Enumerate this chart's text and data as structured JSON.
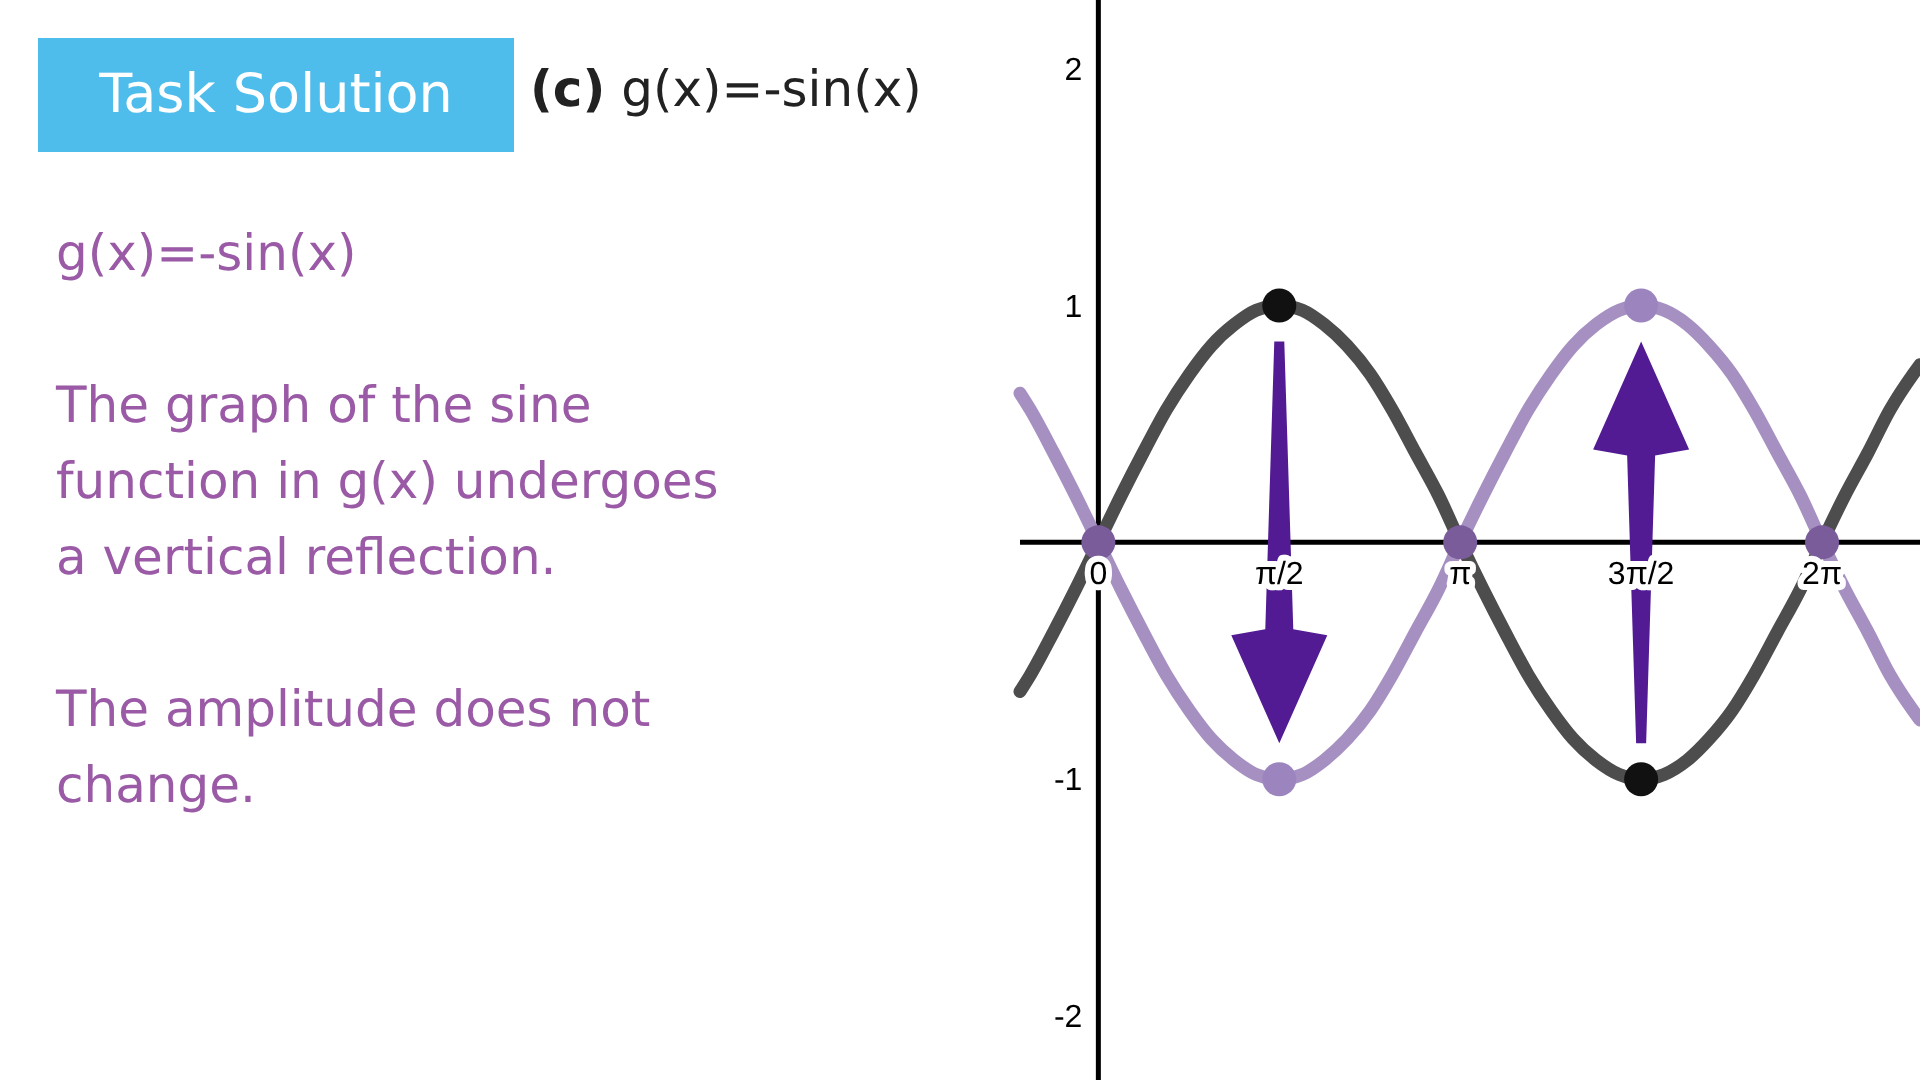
{
  "chart_data": {
    "type": "line",
    "title": "Task Solution",
    "subtitle": "(c) g(x)=-sin(x)",
    "annotations": [
      "g(x)=-sin(x)",
      "The graph of the sine function in g(x) undergoes a vertical reflection.",
      "The amplitude does not change."
    ],
    "xlim": [
      -0.68,
      7.13
    ],
    "ylim": [
      -2.27,
      2.29
    ],
    "xticks": [
      0,
      {
        "value": 1.57,
        "label": "π/2"
      },
      {
        "value": 3.14,
        "label": "π"
      },
      {
        "value": 4.71,
        "label": "3π/2"
      },
      {
        "value": 6.28,
        "label": "2π"
      }
    ],
    "yticks": [
      -2,
      -1,
      1,
      2
    ],
    "series": [
      {
        "color": "#4d4d4d",
        "x": [
          -0.68,
          -0.59,
          -0.39,
          -0.2,
          0,
          0.2,
          0.39,
          0.59,
          0.79,
          0.98,
          1.18,
          1.37,
          1.57,
          1.77,
          1.96,
          2.16,
          2.36,
          2.55,
          2.75,
          2.95,
          3.14,
          3.34,
          3.53,
          3.73,
          3.93,
          4.12,
          4.32,
          4.52,
          4.71,
          4.91,
          5.11,
          5.3,
          5.5,
          5.69,
          5.89,
          6.09,
          6.28,
          6.48,
          6.68,
          6.87,
          7.07,
          7.13
        ],
        "values": [
          -0.63,
          -0.56,
          -0.38,
          -0.2,
          0,
          0.2,
          0.38,
          0.56,
          0.71,
          0.83,
          0.92,
          0.98,
          1,
          0.98,
          0.92,
          0.83,
          0.71,
          0.56,
          0.38,
          0.2,
          0,
          -0.2,
          -0.38,
          -0.56,
          -0.71,
          -0.83,
          -0.92,
          -0.98,
          -1,
          -0.98,
          -0.92,
          -0.83,
          -0.71,
          -0.56,
          -0.38,
          -0.2,
          0,
          0.2,
          0.38,
          0.56,
          0.71,
          0.75
        ]
      },
      {
        "color": "#a690c2",
        "x": [
          -0.68,
          -0.59,
          -0.39,
          -0.2,
          0,
          0.2,
          0.39,
          0.59,
          0.79,
          0.98,
          1.18,
          1.37,
          1.57,
          1.77,
          1.96,
          2.16,
          2.36,
          2.55,
          2.75,
          2.95,
          3.14,
          3.34,
          3.53,
          3.73,
          3.93,
          4.12,
          4.32,
          4.52,
          4.71,
          4.91,
          5.11,
          5.3,
          5.5,
          5.69,
          5.89,
          6.09,
          6.28,
          6.48,
          6.68,
          6.87,
          7.07,
          7.13
        ],
        "values": [
          0.63,
          0.56,
          0.38,
          0.2,
          0,
          -0.2,
          -0.38,
          -0.56,
          -0.71,
          -0.83,
          -0.92,
          -0.98,
          -1,
          -0.98,
          -0.92,
          -0.83,
          -0.71,
          -0.56,
          -0.38,
          -0.2,
          0,
          0.2,
          0.38,
          0.56,
          0.71,
          0.83,
          0.92,
          0.98,
          1,
          0.98,
          0.92,
          0.83,
          0.71,
          0.56,
          0.38,
          0.2,
          0,
          -0.2,
          -0.38,
          -0.56,
          -0.71,
          -0.75
        ]
      },
      {
        "type": "scatter",
        "color": "#111111",
        "marker": "circle",
        "x": [
          1.57,
          4.71
        ],
        "values": [
          1,
          -1
        ]
      },
      {
        "type": "scatter",
        "colors": [
          "#7a5c9a",
          "#9c85be",
          "#7a5c9a",
          "#9c85be",
          "#7a5c9a"
        ],
        "marker": "circle",
        "x": [
          0,
          1.57,
          3.14,
          4.71,
          6.28
        ],
        "values": [
          0,
          -1,
          0,
          1,
          0
        ]
      }
    ]
  }
}
